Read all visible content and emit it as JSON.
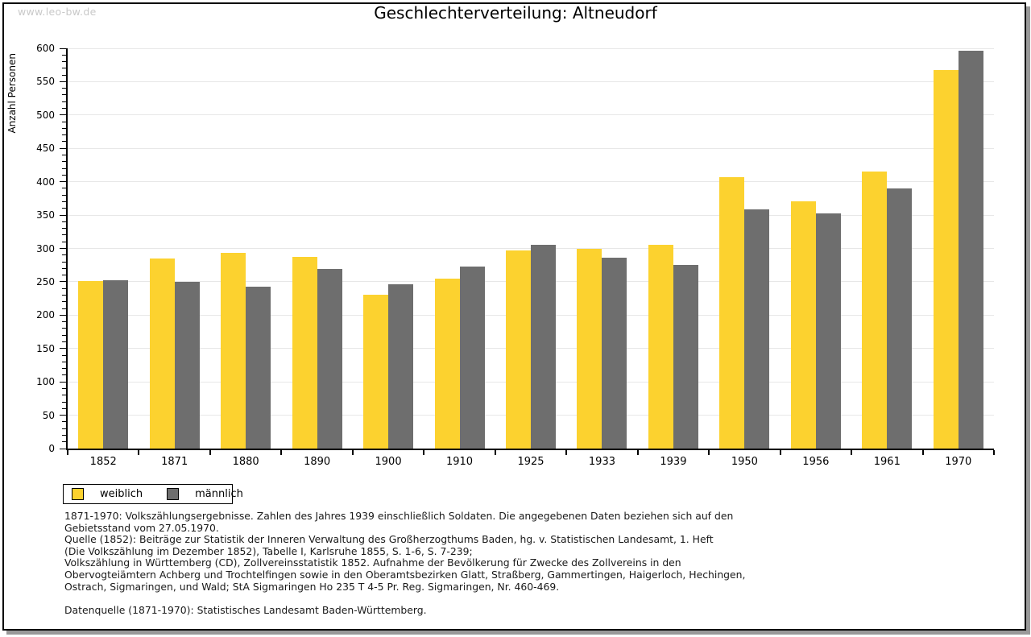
{
  "watermark": "www.leo-bw.de",
  "title": "Geschlechterverteilung: Altneudorf",
  "y_axis_label": "Anzahl Personen",
  "legend": {
    "items": [
      {
        "label": "weiblich",
        "color": "#fcd22f"
      },
      {
        "label": "männlich",
        "color": "#6e6e6e"
      }
    ]
  },
  "footer": {
    "lines": [
      "1871-1970: Volkszählungsergebnisse. Zahlen des Jahres 1939 einschließlich Soldaten. Die angegebenen Daten beziehen sich auf den",
      "Gebietsstand vom 27.05.1970.",
      "Quelle (1852): Beiträge zur Statistik der Inneren Verwaltung des Großherzogthums Baden, hg. v. Statistischen Landesamt, 1. Heft",
      "(Die Volkszählung im Dezember 1852), Tabelle I, Karlsruhe 1855, S. 1-6, S. 7-239;",
      "Volkszählung in Württemberg (CD), Zollvereinsstatistik 1852. Aufnahme der Bevölkerung für Zwecke des Zollvereins in den",
      "Obervogteiämtern Achberg und Trochtelfingen sowie in den Oberamtsbezirken Glatt, Straßberg, Gammertingen, Haigerloch, Hechingen,",
      "Ostrach, Sigmaringen, und Wald; StA Sigmaringen Ho 235 T 4-5 Pr. Reg. Sigmaringen, Nr. 460-469.",
      "",
      "Datenquelle (1871-1970): Statistisches Landesamt Baden-Württemberg."
    ]
  },
  "chart_data": {
    "type": "bar",
    "title": "Geschlechterverteilung: Altneudorf",
    "xlabel": "",
    "ylabel": "Anzahl Personen",
    "categories": [
      "1852",
      "1871",
      "1880",
      "1890",
      "1900",
      "1910",
      "1925",
      "1933",
      "1939",
      "1950",
      "1956",
      "1961",
      "1970"
    ],
    "series": [
      {
        "name": "weiblich",
        "color": "#fcd22f",
        "values": [
          251,
          285,
          293,
          287,
          231,
          255,
          297,
          299,
          305,
          407,
          371,
          415,
          567
        ]
      },
      {
        "name": "männlich",
        "color": "#6e6e6e",
        "values": [
          252,
          250,
          243,
          269,
          246,
          273,
          306,
          286,
          275,
          358,
          352,
          390,
          597
        ]
      }
    ],
    "ylim": [
      0,
      600
    ],
    "y_tick_step": 50,
    "y_minor_tick_step": 10,
    "grid": "horizontal-major-only",
    "gridline_color": "#e7e7e7",
    "legend_position": "bottom-left",
    "watermark": "www.leo-bw.de"
  }
}
